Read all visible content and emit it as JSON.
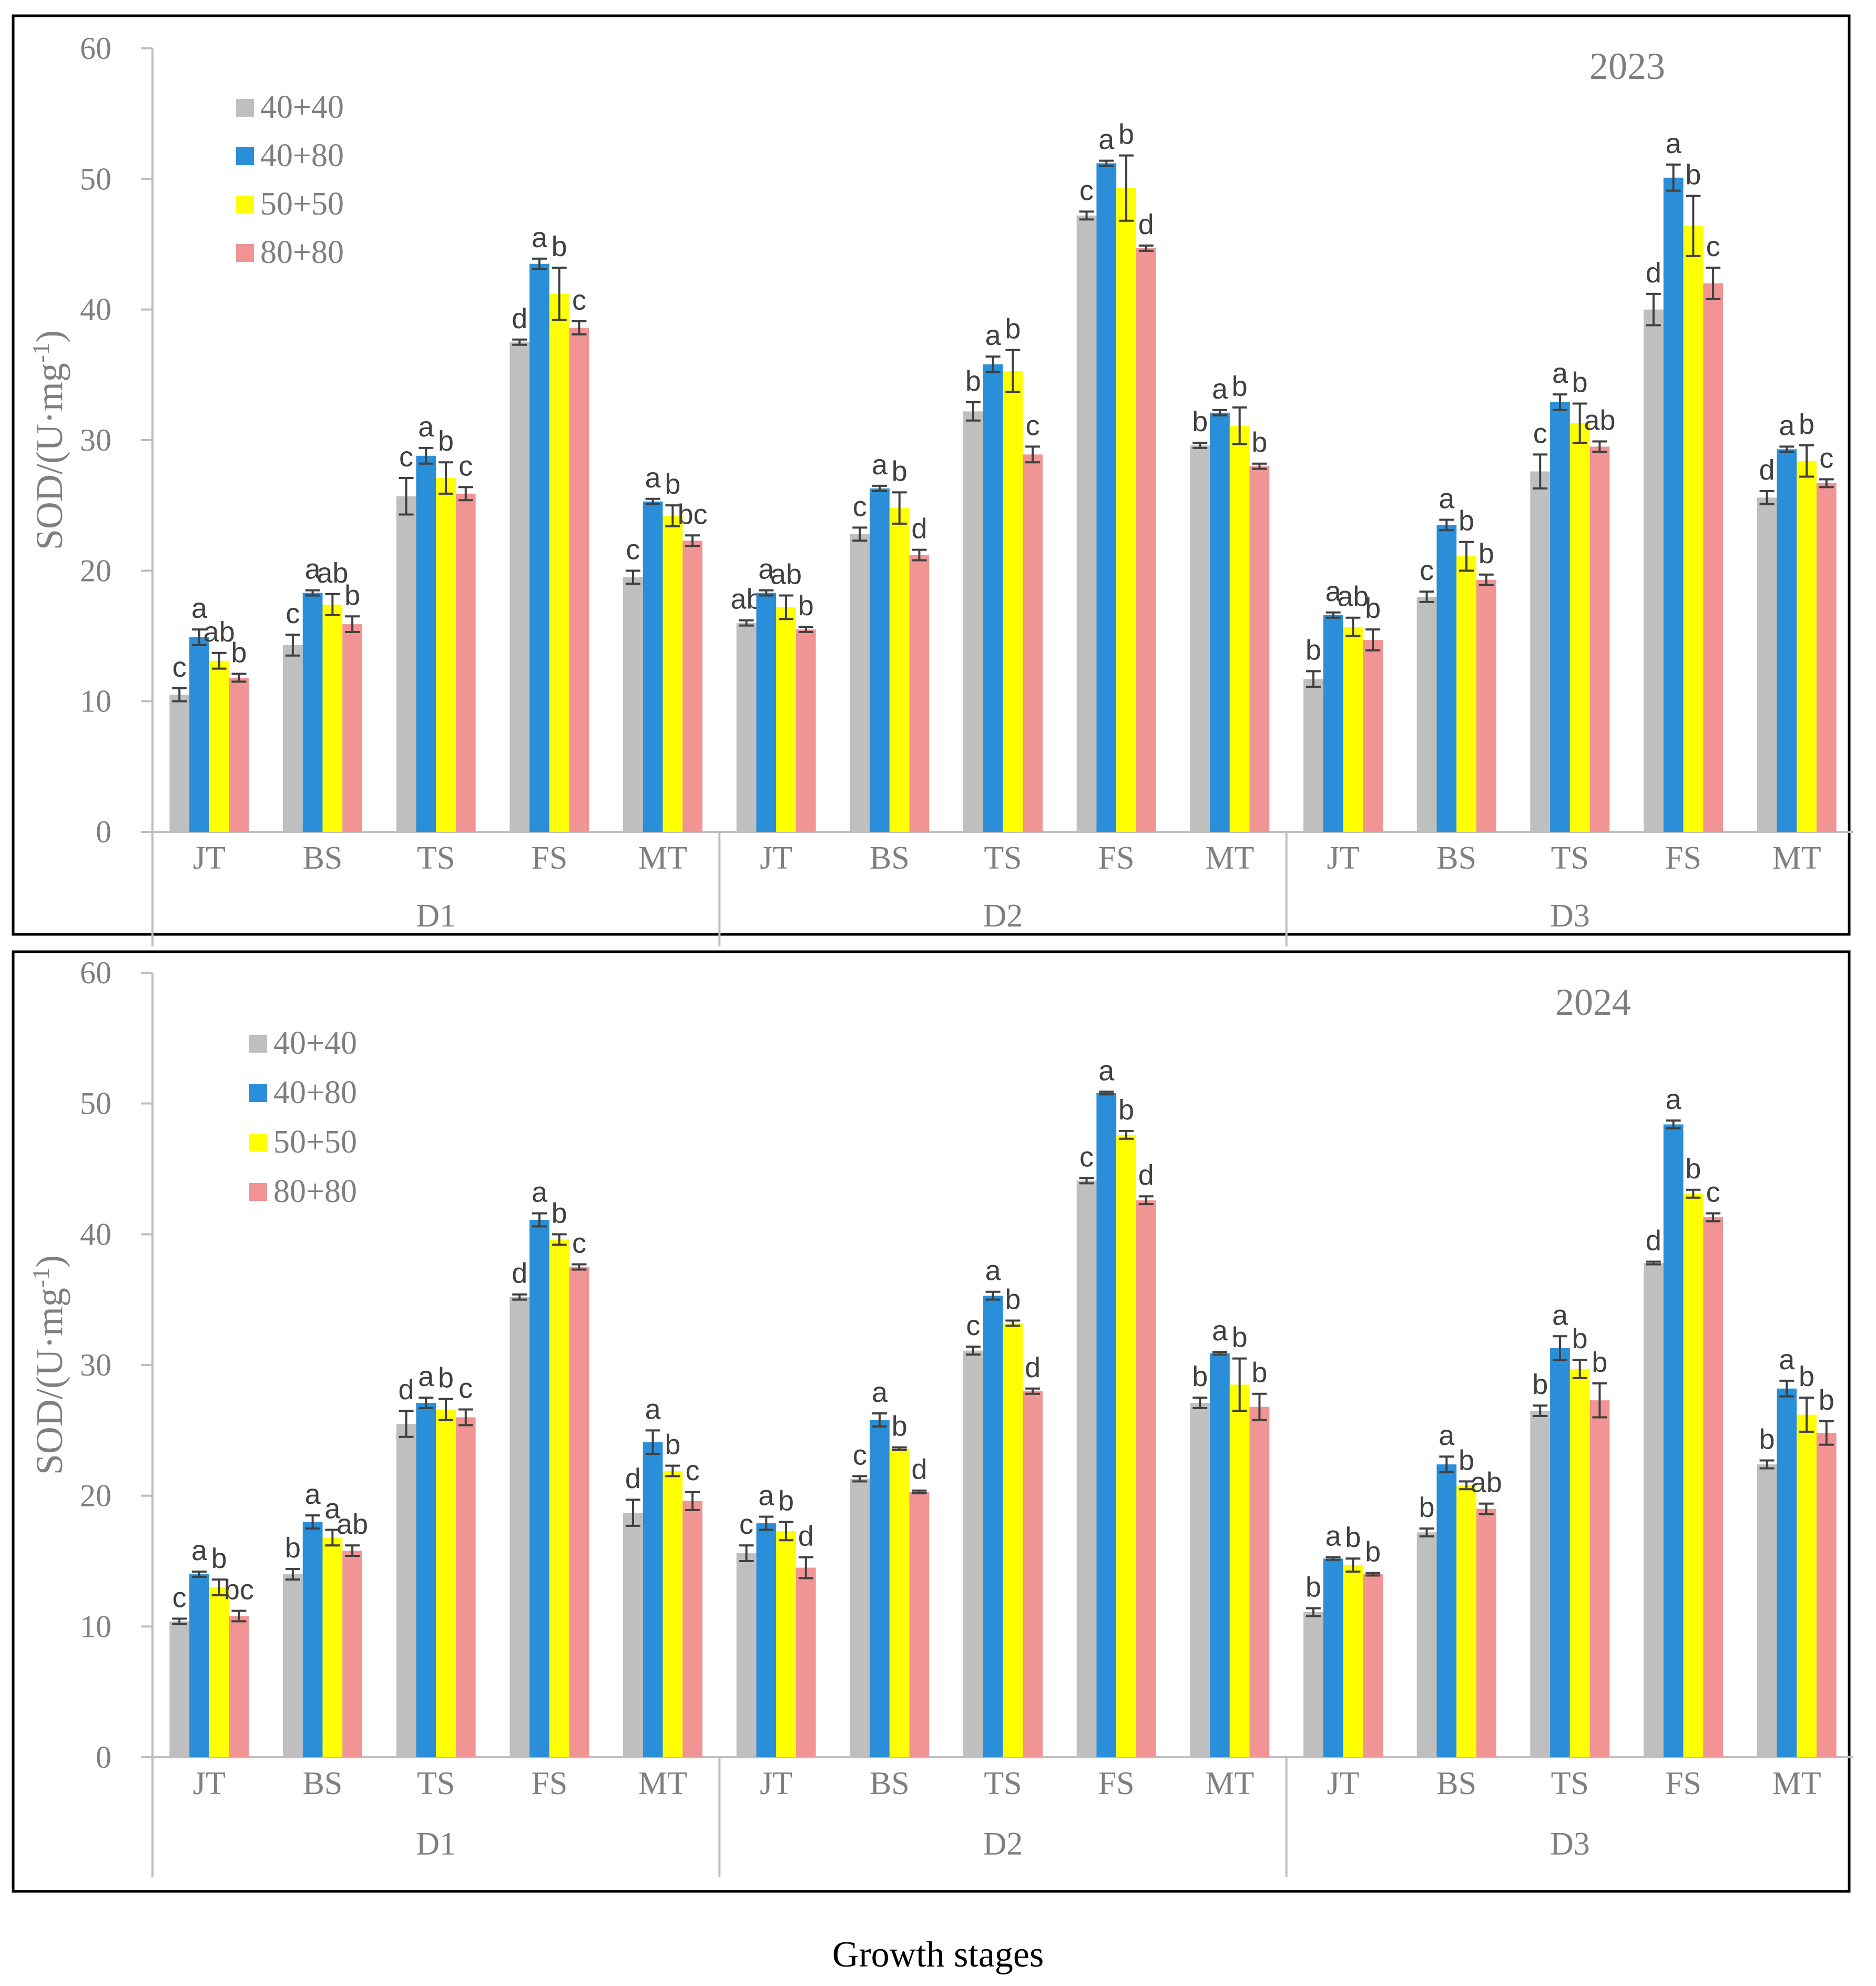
{
  "footer_label": "Growth stages",
  "colors": {
    "40+40": "#bfbfbf",
    "40+80": "#2a8fd8",
    "50+50": "#ffff00",
    "80+80": "#f09494",
    "axis": "#bfbfbf",
    "text": "#7f7f7f",
    "letters": "#404040",
    "errorbar": "#404040",
    "frame": "#000000"
  },
  "chart_data": [
    {
      "type": "bar",
      "title": "2023",
      "ylabel": "SOD/(U·mg-1)",
      "ylabel_parts": [
        "SOD/(U·mg",
        "-1",
        ")"
      ],
      "xlabel": "Growth stages",
      "ylim": [
        0,
        60
      ],
      "yticks": [
        0,
        10,
        20,
        30,
        40,
        50,
        60
      ],
      "groups": [
        "D1",
        "D2",
        "D3"
      ],
      "stages": [
        "JT",
        "BS",
        "TS",
        "FS",
        "MT"
      ],
      "legend": [
        "40+40",
        "40+80",
        "50+50",
        "80+80"
      ],
      "series": [
        {
          "name": "40+40",
          "values": [
            10.5,
            14.3,
            25.7,
            37.5,
            19.5,
            16.0,
            22.8,
            32.2,
            47.2,
            29.6,
            11.7,
            18.0,
            27.6,
            40.0,
            25.6
          ],
          "errors": [
            0.5,
            0.8,
            1.4,
            0.2,
            0.5,
            0.2,
            0.5,
            0.7,
            0.3,
            0.2,
            0.6,
            0.4,
            1.3,
            1.2,
            0.5
          ],
          "letters": [
            "c",
            "c",
            "c",
            "d",
            "c",
            "ab",
            "c",
            "b",
            "c",
            "b",
            "b",
            "c",
            "c",
            "d",
            "d"
          ]
        },
        {
          "name": "40+80",
          "values": [
            14.9,
            18.3,
            28.8,
            43.5,
            25.3,
            18.3,
            26.3,
            35.8,
            51.2,
            32.1,
            16.6,
            23.5,
            32.9,
            50.1,
            29.3
          ],
          "errors": [
            0.6,
            0.2,
            0.6,
            0.4,
            0.2,
            0.2,
            0.2,
            0.6,
            0.2,
            0.2,
            0.2,
            0.4,
            0.6,
            1.0,
            0.2
          ],
          "letters": [
            "a",
            "a",
            "a",
            "a",
            "a",
            "a",
            "a",
            "a",
            "a",
            "a",
            "a",
            "a",
            "a",
            "a",
            "a"
          ]
        },
        {
          "name": "50+50",
          "values": [
            13.1,
            17.4,
            27.1,
            41.2,
            24.2,
            17.2,
            24.8,
            35.3,
            49.3,
            31.1,
            15.7,
            21.1,
            31.3,
            46.4,
            28.4
          ],
          "errors": [
            0.6,
            0.8,
            1.2,
            2.0,
            0.8,
            0.9,
            1.2,
            1.6,
            2.5,
            1.4,
            0.7,
            1.1,
            1.5,
            2.3,
            1.2
          ],
          "letters": [
            "ab",
            "ab",
            "b",
            "b",
            "b",
            "ab",
            "b",
            "b",
            "b",
            "b",
            "ab",
            "b",
            "b",
            "b",
            "b"
          ]
        },
        {
          "name": "80+80",
          "values": [
            11.8,
            15.9,
            25.9,
            38.6,
            22.3,
            15.5,
            21.2,
            28.9,
            44.7,
            28.0,
            14.7,
            19.3,
            29.5,
            42.0,
            26.7
          ],
          "errors": [
            0.3,
            0.6,
            0.5,
            0.5,
            0.4,
            0.2,
            0.4,
            0.6,
            0.2,
            0.2,
            0.8,
            0.4,
            0.4,
            1.2,
            0.3
          ],
          "letters": [
            "b",
            "b",
            "c",
            "c",
            "bc",
            "b",
            "d",
            "c",
            "d",
            "b",
            "b",
            "b",
            "ab",
            "c",
            "c"
          ]
        }
      ]
    },
    {
      "type": "bar",
      "title": "2024",
      "ylabel": "SOD/(U·mg-1)",
      "ylabel_parts": [
        "SOD/(U·mg",
        "-1",
        ")"
      ],
      "xlabel": "Growth stages",
      "ylim": [
        0,
        60
      ],
      "yticks": [
        0,
        10,
        20,
        30,
        40,
        50,
        60
      ],
      "groups": [
        "D1",
        "D2",
        "D3"
      ],
      "stages": [
        "JT",
        "BS",
        "TS",
        "FS",
        "MT"
      ],
      "legend": [
        "40+40",
        "40+80",
        "50+50",
        "80+80"
      ],
      "series": [
        {
          "name": "40+40",
          "values": [
            10.4,
            14.0,
            25.5,
            35.2,
            18.7,
            15.6,
            21.3,
            31.1,
            44.1,
            27.1,
            11.1,
            17.2,
            26.5,
            37.8,
            22.4
          ],
          "errors": [
            0.2,
            0.4,
            1.0,
            0.2,
            1.0,
            0.6,
            0.2,
            0.3,
            0.2,
            0.4,
            0.3,
            0.3,
            0.4,
            0.1,
            0.3
          ],
          "letters": [
            "c",
            "b",
            "d",
            "d",
            "d",
            "c",
            "c",
            "c",
            "c",
            "b",
            "b",
            "b",
            "b",
            "d",
            "b"
          ]
        },
        {
          "name": "40+80",
          "values": [
            14.0,
            18.0,
            27.1,
            41.1,
            24.1,
            17.9,
            25.8,
            35.3,
            50.8,
            30.9,
            15.2,
            22.4,
            31.3,
            48.4,
            28.2
          ],
          "errors": [
            0.2,
            0.5,
            0.4,
            0.5,
            0.9,
            0.5,
            0.5,
            0.3,
            0.1,
            0.1,
            0.1,
            0.6,
            0.9,
            0.3,
            0.6
          ],
          "letters": [
            "a",
            "a",
            "a",
            "a",
            "a",
            "a",
            "a",
            "a",
            "a",
            "a",
            "a",
            "a",
            "a",
            "a",
            "a"
          ]
        },
        {
          "name": "50+50",
          "values": [
            13.0,
            16.8,
            26.6,
            39.6,
            21.9,
            17.3,
            23.6,
            33.2,
            47.6,
            28.5,
            14.7,
            20.8,
            29.7,
            43.1,
            26.2
          ],
          "errors": [
            0.6,
            0.6,
            0.8,
            0.4,
            0.4,
            0.7,
            0.1,
            0.2,
            0.3,
            2.0,
            0.5,
            0.3,
            0.7,
            0.3,
            1.3
          ],
          "letters": [
            "b",
            "a",
            "b",
            "b",
            "b",
            "b",
            "b",
            "b",
            "b",
            "b",
            "b",
            "b",
            "b",
            "b",
            "b"
          ]
        },
        {
          "name": "80+80",
          "values": [
            10.8,
            15.8,
            26.0,
            37.5,
            19.6,
            14.5,
            20.3,
            28.0,
            42.6,
            26.8,
            14.0,
            19.0,
            27.3,
            41.3,
            24.8
          ],
          "errors": [
            0.4,
            0.4,
            0.6,
            0.2,
            0.7,
            0.8,
            0.1,
            0.2,
            0.3,
            1.0,
            0.1,
            0.4,
            1.3,
            0.3,
            0.9
          ],
          "letters": [
            "bc",
            "ab",
            "c",
            "c",
            "c",
            "d",
            "d",
            "d",
            "d",
            "b",
            "b",
            "ab",
            "b",
            "c",
            "b"
          ]
        }
      ]
    }
  ]
}
